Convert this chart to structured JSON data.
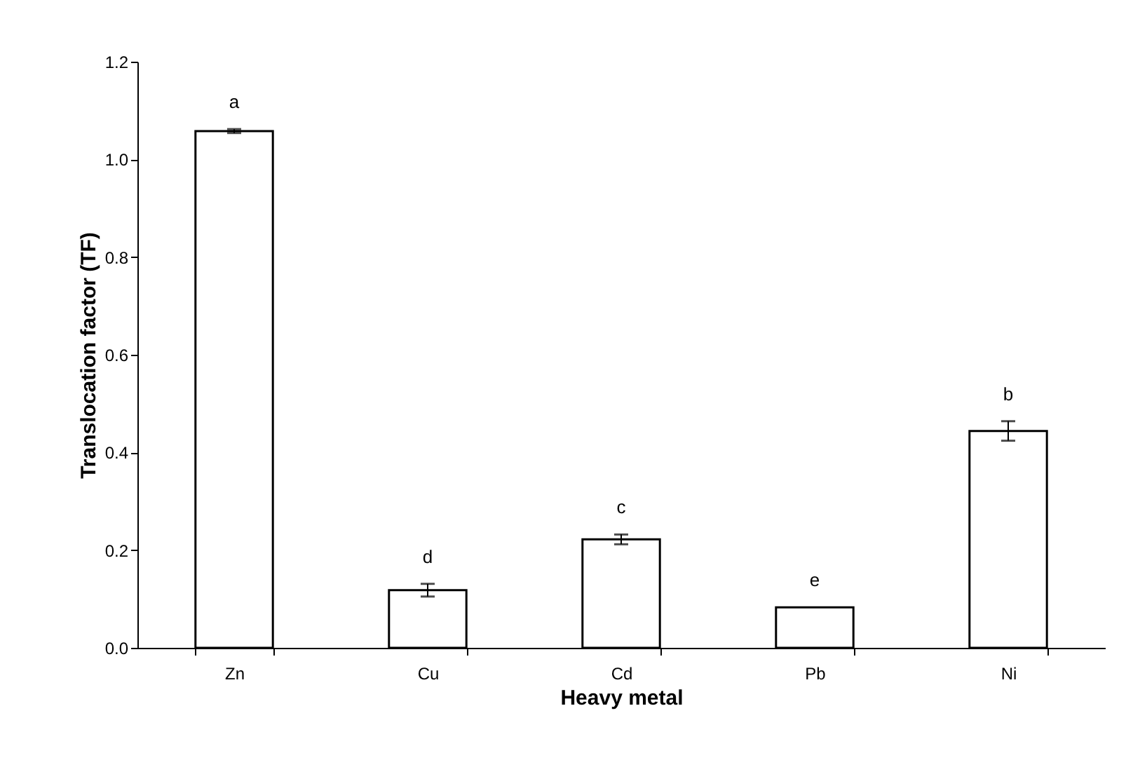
{
  "chart_data": {
    "type": "bar",
    "xlabel": "Heavy metal",
    "ylabel": "Translocation factor (TF)",
    "categories": [
      "Zn",
      "Cu",
      "Cd",
      "Pb",
      "Ni"
    ],
    "values": [
      1.058,
      0.118,
      0.222,
      0.083,
      0.444
    ],
    "errors": [
      0.004,
      0.013,
      0.01,
      null,
      0.02
    ],
    "color": "#ffffff",
    "ylim": [
      0,
      1.2
    ],
    "yticks": [
      {
        "value": 0,
        "label": "0.0"
      },
      0.2,
      0.4,
      0.6,
      0.8,
      {
        "value": 1,
        "label": "1.0"
      },
      1.2
    ],
    "annotations": [
      {
        "text": "a",
        "x": "Zn",
        "y": 1.062
      },
      {
        "text": "d",
        "x": "Cu",
        "y": 0.131
      },
      {
        "text": "c",
        "x": "Cd",
        "y": 0.232
      },
      {
        "text": "e",
        "x": "Pb",
        "y": 0.083
      },
      {
        "text": "b",
        "x": "Ni",
        "y": 0.464
      }
    ],
    "grid": false
  }
}
